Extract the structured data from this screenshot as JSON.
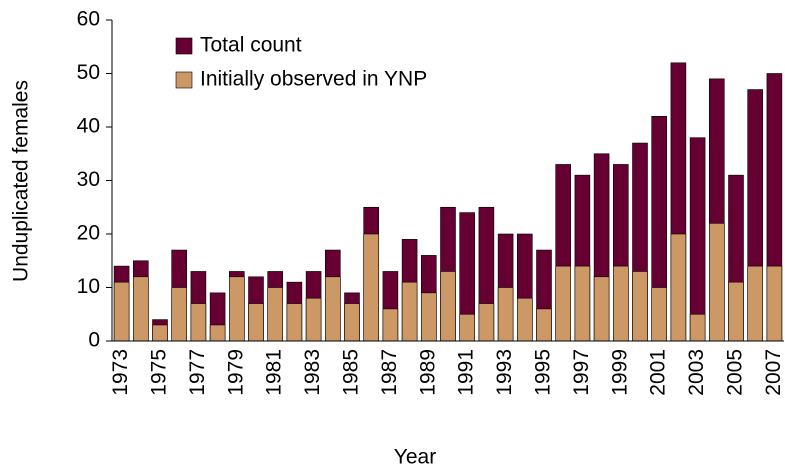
{
  "chart_data": {
    "type": "bar",
    "categories": [
      "1973",
      null,
      "1975",
      null,
      "1977",
      null,
      "1979",
      null,
      "1981",
      null,
      "1983",
      null,
      "1985",
      null,
      "1987",
      null,
      "1989",
      null,
      "1991",
      null,
      "1993",
      null,
      "1995",
      null,
      "1997",
      null,
      "1999",
      null,
      "2001",
      null,
      "2003",
      null,
      "2005",
      null,
      "2007"
    ],
    "series": [
      {
        "name": "Total count",
        "color": "#660033",
        "values": [
          14,
          15,
          4,
          17,
          13,
          9,
          13,
          12,
          13,
          11,
          13,
          17,
          9,
          25,
          13,
          19,
          16,
          25,
          24,
          25,
          20,
          20,
          17,
          33,
          31,
          35,
          33,
          37,
          42,
          52,
          38,
          49,
          31,
          47,
          50
        ]
      },
      {
        "name": "Initially observed in YNP",
        "color": "#cc9966",
        "values": [
          11,
          12,
          3,
          10,
          7,
          3,
          12,
          7,
          10,
          7,
          8,
          12,
          7,
          20,
          6,
          11,
          9,
          13,
          5,
          7,
          10,
          8,
          6,
          14,
          14,
          12,
          14,
          13,
          10,
          20,
          5,
          22,
          11,
          14,
          14
        ]
      }
    ],
    "x_label": "Year",
    "y_label": "Unduplicated females",
    "ylim": [
      0,
      60
    ],
    "yticks": [
      0,
      10,
      20,
      30,
      40,
      50,
      60
    ],
    "legend": "top-left"
  }
}
